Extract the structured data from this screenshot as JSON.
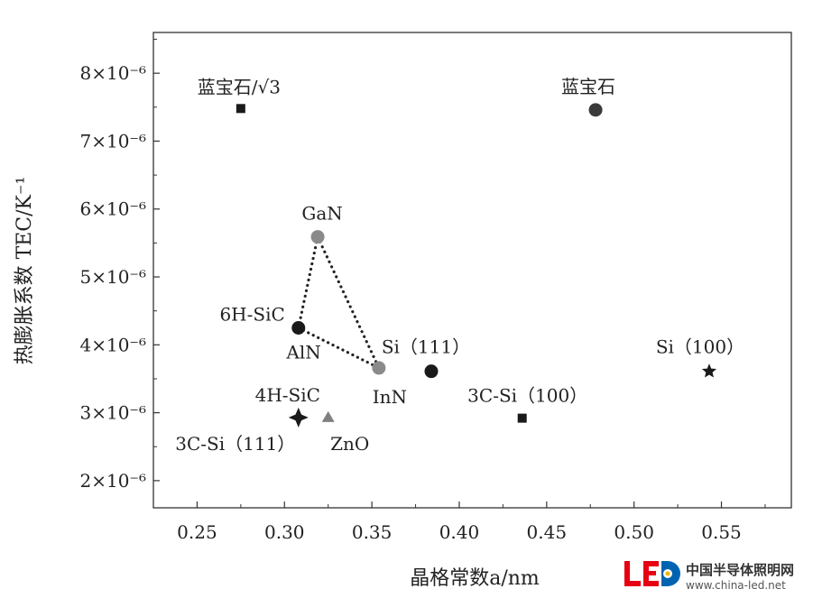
{
  "chart_data": {
    "type": "scatter",
    "xlabel": "晶格常数a/nm",
    "ylabel": "热膨胀系数 TEC/K⁻¹",
    "xlim": [
      0.225,
      0.59
    ],
    "ylim": [
      1.6,
      8.6
    ],
    "x_ticks": [
      {
        "value": 0.25,
        "label": "0.25"
      },
      {
        "value": 0.3,
        "label": "0.30"
      },
      {
        "value": 0.35,
        "label": "0.35"
      },
      {
        "value": 0.4,
        "label": "0.40"
      },
      {
        "value": 0.45,
        "label": "0.45"
      },
      {
        "value": 0.5,
        "label": "0.50"
      },
      {
        "value": 0.55,
        "label": "0.55"
      }
    ],
    "y_ticks": [
      {
        "value": 2,
        "label": "2×10⁻⁶"
      },
      {
        "value": 3,
        "label": "3×10⁻⁶"
      },
      {
        "value": 4,
        "label": "4×10⁻⁶"
      },
      {
        "value": 5,
        "label": "5×10⁻⁶"
      },
      {
        "value": 6,
        "label": "6×10⁻⁶"
      },
      {
        "value": 7,
        "label": "7×10⁻⁶"
      },
      {
        "value": 8,
        "label": "8×10⁻⁶"
      }
    ],
    "points": [
      {
        "name": "蓝宝石/√3",
        "x": 0.275,
        "y": 7.48,
        "marker": "square",
        "color": "#1a1a1a"
      },
      {
        "name": "蓝宝石",
        "x": 0.478,
        "y": 7.46,
        "marker": "circle",
        "color": "#3a3a3a"
      },
      {
        "name": "GaN",
        "x": 0.319,
        "y": 5.59,
        "marker": "circle",
        "color": "#8a8a8a"
      },
      {
        "name": "6H-SiC",
        "x": 0.308,
        "y": 4.25,
        "marker": "circle",
        "color": "#1a1a1a"
      },
      {
        "name": "AlN",
        "x": 0.311,
        "y": 4.2,
        "marker": "none",
        "color": "#1a1a1a"
      },
      {
        "name": "InN",
        "x": 0.354,
        "y": 3.66,
        "marker": "circle",
        "color": "#8a8a8a"
      },
      {
        "name": "Si（111）",
        "x": 0.384,
        "y": 3.61,
        "marker": "circle",
        "color": "#1a1a1a"
      },
      {
        "name": "Si（100）",
        "x": 0.543,
        "y": 3.61,
        "marker": "star",
        "color": "#1a1a1a"
      },
      {
        "name": "3C-Si（100）",
        "x": 0.436,
        "y": 2.92,
        "marker": "square",
        "color": "#1a1a1a"
      },
      {
        "name": "4H-SiC",
        "x": 0.308,
        "y": 2.93,
        "marker": "diamond-star",
        "color": "#1a1a1a"
      },
      {
        "name": "3C-Si（111）",
        "x": 0.308,
        "y": 2.93,
        "marker": "none",
        "color": "#1a1a1a"
      },
      {
        "name": "ZnO",
        "x": 0.325,
        "y": 2.93,
        "marker": "triangle",
        "color": "#808080"
      }
    ],
    "connectors": [
      {
        "from": "GaN",
        "to": "6H-SiC",
        "style": "dotted"
      },
      {
        "from": "6H-SiC",
        "to": "InN",
        "style": "dotted"
      },
      {
        "from": "GaN",
        "to": "InN",
        "style": "dotted"
      }
    ]
  },
  "watermark": {
    "logo_text": "LED",
    "cn_text": "中国半导体照明网",
    "url_text": "www.china-led.net",
    "colors": {
      "red": "#e60012",
      "blue": "#0063b1"
    }
  }
}
